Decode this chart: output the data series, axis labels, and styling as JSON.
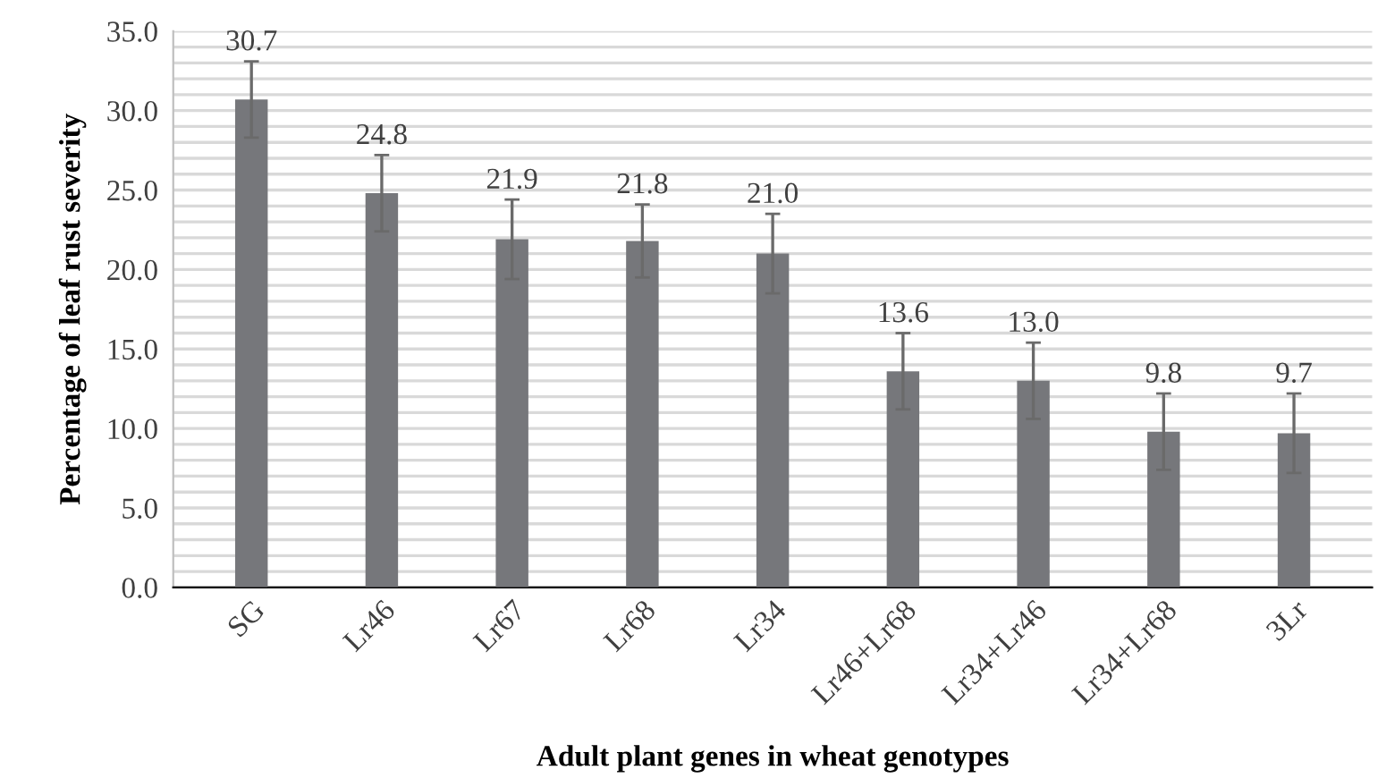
{
  "chart_data": {
    "type": "bar",
    "xlabel": "Adult plant genes in wheat genotypes",
    "ylabel": "Percentage of leaf rust severity",
    "categories": [
      "SG",
      "Lr46",
      "Lr67",
      "Lr68",
      "Lr34",
      "Lr46+Lr68",
      "Lr34+Lr46",
      "Lr34+Lr68",
      "3Lr"
    ],
    "values": [
      30.7,
      24.8,
      21.9,
      21.8,
      21.0,
      13.6,
      13.0,
      9.8,
      9.7
    ],
    "errors": [
      2.4,
      2.4,
      2.5,
      2.3,
      2.5,
      2.4,
      2.4,
      2.4,
      2.5
    ],
    "value_labels": [
      "30.7",
      "24.8",
      "21.9",
      "21.8",
      "21.0",
      "13.6",
      "13.0",
      "9.8",
      "9.7"
    ],
    "color": "#76777b",
    "grid": "y",
    "ylim": [
      0,
      35
    ],
    "yticks": [
      {
        "value": 0,
        "label": "0.0"
      },
      {
        "value": 1,
        "label": null
      },
      {
        "value": 2,
        "label": null
      },
      {
        "value": 3,
        "label": null
      },
      {
        "value": 4,
        "label": null
      },
      {
        "value": 5,
        "label": "5.0"
      },
      {
        "value": 6,
        "label": null
      },
      {
        "value": 7,
        "label": null
      },
      {
        "value": 8,
        "label": null
      },
      {
        "value": 9,
        "label": null
      },
      {
        "value": 10,
        "label": "10.0"
      },
      {
        "value": 11,
        "label": null
      },
      {
        "value": 12,
        "label": null
      },
      {
        "value": 13,
        "label": null
      },
      {
        "value": 14,
        "label": null
      },
      {
        "value": 15,
        "label": "15.0"
      },
      {
        "value": 16,
        "label": null
      },
      {
        "value": 17,
        "label": null
      },
      {
        "value": 18,
        "label": null
      },
      {
        "value": 19,
        "label": null
      },
      {
        "value": 20,
        "label": "20.0"
      },
      {
        "value": 21,
        "label": null
      },
      {
        "value": 22,
        "label": null
      },
      {
        "value": 23,
        "label": null
      },
      {
        "value": 24,
        "label": null
      },
      {
        "value": 25,
        "label": "25.0"
      },
      {
        "value": 26,
        "label": null
      },
      {
        "value": 27,
        "label": null
      },
      {
        "value": 28,
        "label": null
      },
      {
        "value": 29,
        "label": null
      },
      {
        "value": 30,
        "label": "30.0"
      },
      {
        "value": 31,
        "label": null
      },
      {
        "value": 32,
        "label": null
      },
      {
        "value": 33,
        "label": null
      },
      {
        "value": 34,
        "label": null
      },
      {
        "value": 35,
        "label": "35.0"
      }
    ]
  }
}
